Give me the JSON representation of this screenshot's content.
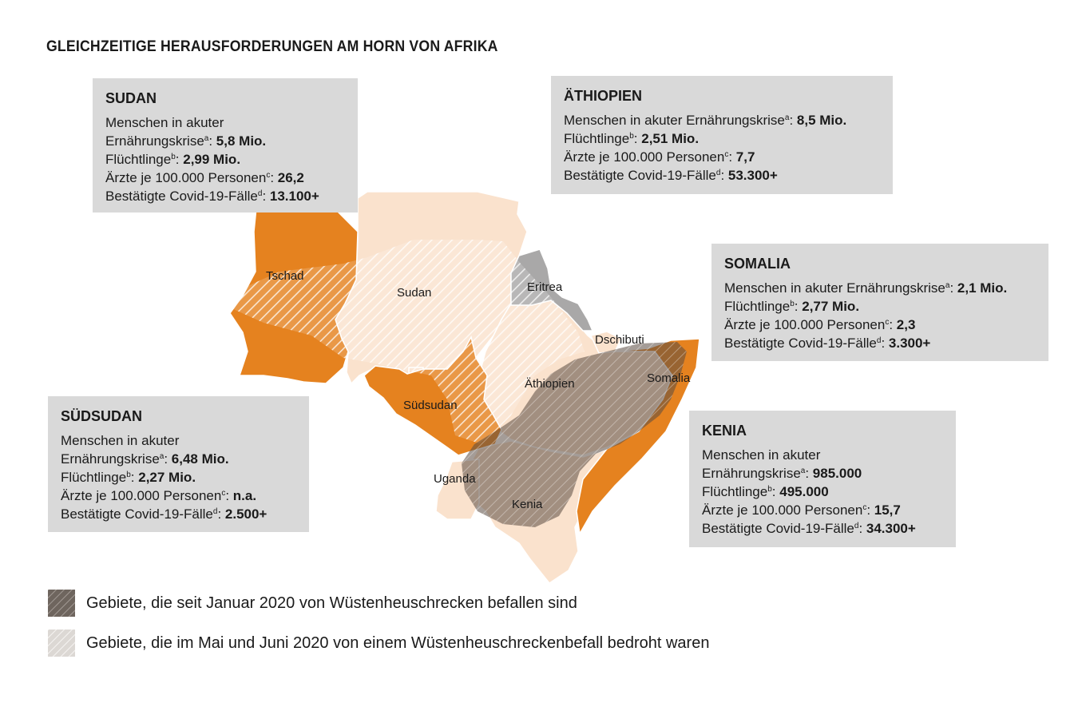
{
  "title": "GLEICHZEITIGE HERAUSFORDERUNGEN AM HORN VON AFRIKA",
  "colors": {
    "affected_country": "#e5821f",
    "neighbor_country": "#fae2cd",
    "eritrea_gray": "#a9a8a8",
    "box_bg": "#d9d9d9",
    "hatch_infested": "#6b5f57",
    "hatch_threatened": "#d8d3cd"
  },
  "map_labels": {
    "tschad": "Tschad",
    "sudan": "Sudan",
    "eritrea": "Eritrea",
    "dschibuti": "Dschibuti",
    "somalia": "Somalia",
    "aethiopien": "Äthiopien",
    "suedsudan": "Südsudan",
    "uganda": "Uganda",
    "kenia": "Kenia"
  },
  "boxes": {
    "sudan": {
      "heading": "SUDAN",
      "l1a": "Menschen in akuter",
      "l1b": "Ernährungskrise",
      "s1": "a",
      "v1": "5,8 Mio.",
      "l2": "Flüchtlinge",
      "s2": "b",
      "v2": "2,99 Mio.",
      "l3": "Ärzte je 100.000 Personen",
      "s3": "c",
      "v3": "26,2",
      "l4": "Bestätigte Covid-19-Fälle",
      "s4": "d",
      "v4": "13.100+"
    },
    "aethiopien": {
      "heading": "ÄTHIOPIEN",
      "l1": "Menschen in akuter Ernährungskrise",
      "s1": "a",
      "v1": "8,5 Mio.",
      "l2": "Flüchtlinge",
      "s2": "b",
      "v2": "2,51 Mio.",
      "l3": "Ärzte je 100.000 Personen",
      "s3": "c",
      "v3": "7,7",
      "l4": "Bestätigte Covid-19-Fälle",
      "s4": "d",
      "v4": "53.300+"
    },
    "somalia": {
      "heading": "SOMALIA",
      "l1": "Menschen in akuter Ernährungskrise",
      "s1": "a",
      "v1": "2,1 Mio.",
      "l2": "Flüchtlinge",
      "s2": "b",
      "v2": "2,77 Mio.",
      "l3": "Ärzte je 100.000 Personen",
      "s3": "c",
      "v3": "2,3",
      "l4": "Bestätigte Covid-19-Fälle",
      "s4": "d",
      "v4": "3.300+"
    },
    "suedsudan": {
      "heading": "SÜDSUDAN",
      "l1a": "Menschen in akuter",
      "l1b": "Ernährungskrise",
      "s1": "a",
      "v1": "6,48 Mio.",
      "l2": "Flüchtlinge",
      "s2": "b",
      "v2": "2,27 Mio.",
      "l3": "Ärzte je 100.000 Personen",
      "s3": "c",
      "v3": "n.a.",
      "l4": "Bestätigte Covid-19-Fälle",
      "s4": "d",
      "v4": "2.500+"
    },
    "kenia": {
      "heading": "KENIA",
      "l1a": "Menschen in akuter",
      "l1b": "Ernährungskrise",
      "s1": "a",
      "v1": "985.000",
      "l2": "Flüchtlinge",
      "s2": "b",
      "v2": "495.000",
      "l3": "Ärzte je 100.000 Personen",
      "s3": "c",
      "v3": "15,7",
      "l4": "Bestätigte Covid-19-Fälle",
      "s4": "d",
      "v4": "34.300+"
    }
  },
  "legend": {
    "infested": "Gebiete, die seit Januar 2020 von Wüstenheuschrecken befallen sind",
    "threatened": "Gebiete, die im Mai und Juni 2020 von einem Wüstenheuschreckenbefall bedroht waren"
  }
}
